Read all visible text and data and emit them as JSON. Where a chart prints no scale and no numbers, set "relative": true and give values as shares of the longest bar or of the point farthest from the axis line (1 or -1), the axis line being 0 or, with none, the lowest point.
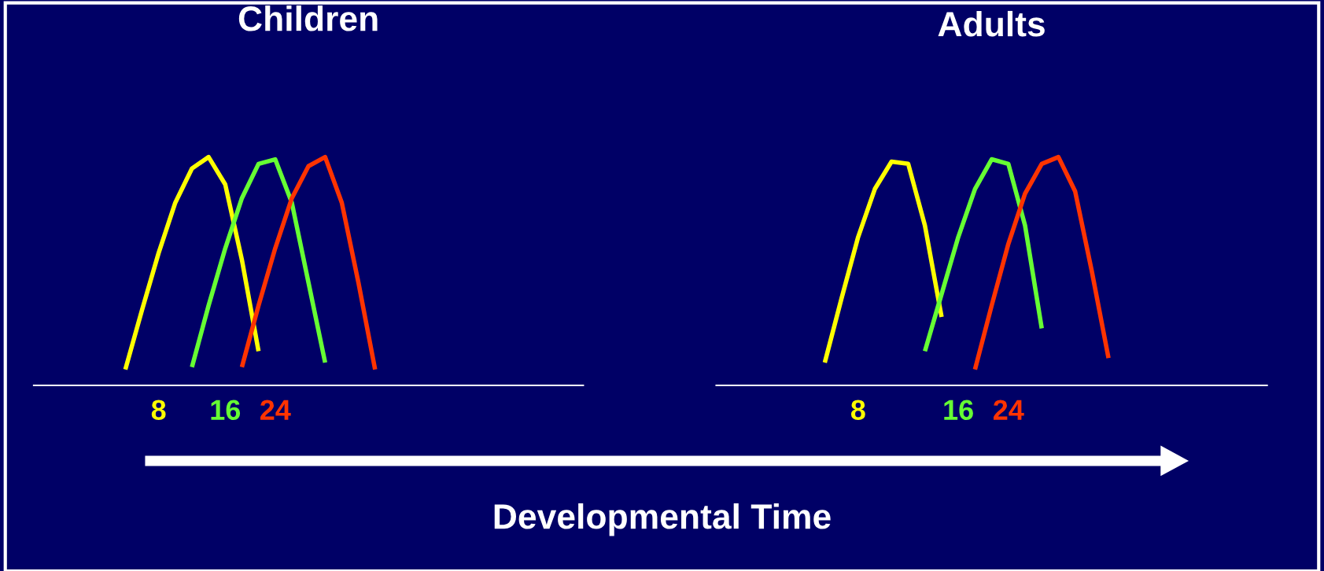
{
  "chart_data": [
    {
      "type": "line",
      "title": "Children",
      "relative": true,
      "grid": false,
      "legend": false,
      "marker": "none",
      "line_style": "solid",
      "categories": [
        null,
        null,
        null,
        null,
        null,
        null,
        null,
        null,
        null,
        null,
        null,
        null,
        null,
        null,
        null,
        null,
        null,
        null,
        null,
        null,
        null,
        null,
        null,
        null,
        null,
        null,
        null,
        null,
        null,
        null,
        null,
        null,
        null
      ],
      "series": [
        {
          "name": "8",
          "color": "#ffff00",
          "values": [
            null,
            null,
            null,
            null,
            null,
            0.07,
            0.33,
            0.58,
            0.8,
            0.95,
            1.0,
            0.88,
            0.55,
            0.15,
            null,
            null,
            null,
            null,
            null,
            null,
            null,
            null,
            null,
            null,
            null,
            null,
            null,
            null,
            null,
            null,
            null,
            null,
            null
          ]
        },
        {
          "name": "16",
          "color": "#66ff33",
          "values": [
            null,
            null,
            null,
            null,
            null,
            null,
            null,
            null,
            null,
            0.08,
            0.35,
            0.6,
            0.82,
            0.97,
            0.99,
            0.8,
            0.45,
            0.1,
            null,
            null,
            null,
            null,
            null,
            null,
            null,
            null,
            null,
            null,
            null,
            null,
            null,
            null,
            null
          ]
        },
        {
          "name": "24",
          "color": "#ff3300",
          "values": [
            null,
            null,
            null,
            null,
            null,
            null,
            null,
            null,
            null,
            null,
            null,
            null,
            0.08,
            0.35,
            0.6,
            0.82,
            0.96,
            1.0,
            0.8,
            0.45,
            0.07,
            null,
            null,
            null,
            null,
            null,
            null,
            null,
            null,
            null,
            null,
            null,
            null
          ]
        }
      ]
    },
    {
      "type": "line",
      "title": "Adults",
      "relative": true,
      "grid": false,
      "legend": false,
      "marker": "none",
      "line_style": "solid",
      "annotations": [
        "Developmental Time"
      ],
      "categories": [
        null,
        null,
        null,
        null,
        null,
        null,
        null,
        null,
        null,
        null,
        null,
        null,
        null,
        null,
        null,
        null,
        null,
        null,
        null,
        null,
        null,
        null,
        null,
        null,
        null,
        null,
        null,
        null,
        null,
        null,
        null,
        null,
        null
      ],
      "series": [
        {
          "name": "8",
          "color": "#ffff00",
          "values": [
            null,
            null,
            null,
            null,
            null,
            null,
            0.1,
            0.38,
            0.65,
            0.86,
            0.98,
            0.97,
            0.7,
            0.3,
            null,
            null,
            null,
            null,
            null,
            null,
            null,
            null,
            null,
            null,
            null,
            null,
            null,
            null,
            null,
            null,
            null,
            null,
            null
          ]
        },
        {
          "name": "16",
          "color": "#66ff33",
          "values": [
            null,
            null,
            null,
            null,
            null,
            null,
            null,
            null,
            null,
            null,
            null,
            null,
            0.15,
            0.4,
            0.65,
            0.86,
            0.99,
            0.97,
            0.7,
            0.25,
            null,
            null,
            null,
            null,
            null,
            null,
            null,
            null,
            null,
            null,
            null,
            null,
            null
          ]
        },
        {
          "name": "24",
          "color": "#ff3300",
          "values": [
            null,
            null,
            null,
            null,
            null,
            null,
            null,
            null,
            null,
            null,
            null,
            null,
            null,
            null,
            null,
            0.07,
            0.35,
            0.62,
            0.84,
            0.97,
            1.0,
            0.85,
            0.5,
            0.12,
            null,
            null,
            null,
            null,
            null,
            null,
            null,
            null,
            null
          ]
        }
      ]
    }
  ]
}
